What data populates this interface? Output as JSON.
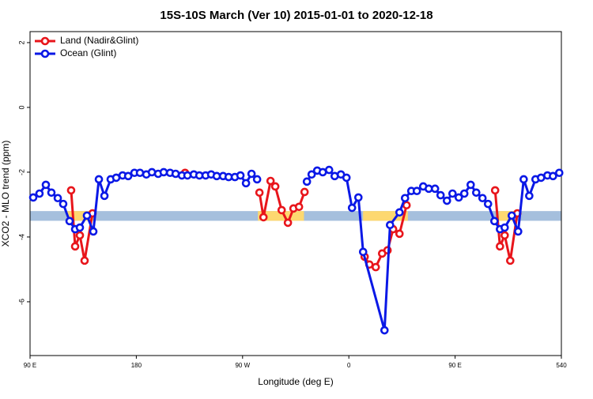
{
  "chart_data": {
    "type": "line",
    "title": "15S-10S March (Ver 10)   2015-01-01 to 2020-12-18",
    "xlabel": "Longitude (deg E)",
    "ylabel": "XCO2 - MLO trend (ppm)",
    "xlim": [
      90,
      540
    ],
    "ylim": [
      -7.66,
      2.34
    ],
    "xticks": [
      {
        "value": 90,
        "label": "90 E"
      },
      180,
      {
        "value": 270,
        "label": "90 W"
      },
      {
        "value": 360,
        "label": "0"
      },
      {
        "value": 450,
        "label": "90 E"
      },
      540
    ],
    "yticks": [
      2,
      0,
      -2,
      -4,
      -6
    ],
    "legend": "top-left",
    "surface_band": {
      "ylim": [
        -3.5,
        -3.2
      ],
      "ocean_color": "#a5bfdd",
      "land_color": "#fdd870",
      "land": [
        [
          121,
          144
        ],
        [
          283,
          322
        ],
        [
          372,
          410
        ],
        [
          487,
          500
        ]
      ]
    },
    "series": [
      {
        "name": "Land (Nadir&Glint)",
        "color": "#e8151b",
        "x": [
          124.8,
          128.2,
          132.2,
          136.2,
          142.9,
          null,
          221.3,
          null,
          284.3,
          287.7,
          293.7,
          297.7,
          303.1,
          308.4,
          313.1,
          317.8,
          322.5,
          null,
          373.4,
          377.4,
          382.8,
          388.2,
          392.8,
          397.5,
          402.9,
          408.9,
          null,
          483.9,
          488.0,
          492.0,
          496.7,
          502.7
        ],
        "values": [
          -2.56,
          -4.29,
          -3.95,
          -4.73,
          -3.27,
          null,
          -2.02,
          null,
          -2.63,
          -3.39,
          -2.27,
          -2.44,
          -3.17,
          -3.56,
          -3.12,
          -3.07,
          -2.61,
          null,
          -4.61,
          -4.85,
          -4.93,
          -4.51,
          -4.41,
          -3.76,
          -3.9,
          -3.02,
          null,
          -2.56,
          -4.29,
          -3.95,
          -4.73,
          -3.27
        ]
      },
      {
        "name": "Ocean (Glint)",
        "color": "#0a18e6",
        "x": [
          92.7,
          98.0,
          103.4,
          108.1,
          113.5,
          118.1,
          123.5,
          128.2,
          132.2,
          138.2,
          143.6,
          148.3,
          153.0,
          158.3,
          163.0,
          168.4,
          173.1,
          178.4,
          183.1,
          188.5,
          193.2,
          198.5,
          203.2,
          208.6,
          213.3,
          218.6,
          223.3,
          228.7,
          233.4,
          238.7,
          243.4,
          248.1,
          253.5,
          258.2,
          263.5,
          268.2,
          272.9,
          277.6,
          282.3,
          null,
          324.5,
          328.5,
          333.2,
          337.9,
          343.3,
          348.0,
          353.3,
          358.0,
          362.7,
          368.1,
          372.1,
          390.2,
          394.9,
          402.9,
          407.6,
          412.9,
          417.6,
          423.0,
          427.7,
          433.0,
          437.7,
          443.1,
          447.8,
          453.1,
          457.8,
          463.2,
          467.9,
          473.2,
          477.9,
          483.3,
          488.0,
          492.0,
          498.0,
          503.4,
          508.1,
          512.8,
          518.1,
          522.8,
          528.2,
          532.9,
          538.2
        ],
        "values": [
          -2.78,
          -2.66,
          -2.39,
          -2.63,
          -2.8,
          -2.98,
          -3.51,
          -3.76,
          -3.71,
          -3.34,
          -3.83,
          -2.22,
          -2.73,
          -2.22,
          -2.17,
          -2.1,
          -2.12,
          -2.02,
          -2.02,
          -2.07,
          -2.0,
          -2.05,
          -2.0,
          -2.02,
          -2.05,
          -2.1,
          -2.1,
          -2.07,
          -2.1,
          -2.1,
          -2.07,
          -2.12,
          -2.12,
          -2.15,
          -2.15,
          -2.1,
          -2.34,
          -2.05,
          -2.22,
          null,
          -2.29,
          -2.07,
          -1.95,
          -2.0,
          -1.93,
          -2.12,
          -2.07,
          -2.17,
          -3.1,
          -2.78,
          -4.46,
          -6.88,
          -3.63,
          -3.24,
          -2.8,
          -2.58,
          -2.58,
          -2.44,
          -2.51,
          -2.51,
          -2.71,
          -2.88,
          -2.66,
          -2.78,
          -2.66,
          -2.39,
          -2.63,
          -2.8,
          -2.98,
          -3.51,
          -3.76,
          -3.71,
          -3.34,
          -3.83,
          -2.22,
          -2.73,
          -2.22,
          -2.17,
          -2.1,
          -2.12,
          -2.02
        ]
      }
    ]
  }
}
